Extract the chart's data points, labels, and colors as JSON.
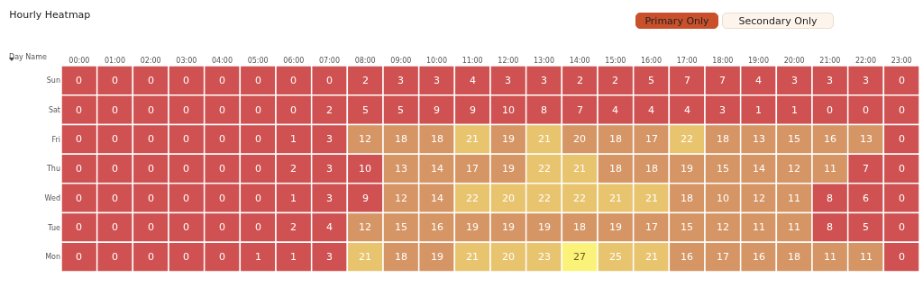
{
  "chart_data": {
    "type": "heatmap",
    "title": "Hourly Heatmap",
    "ylabel": "Day Name",
    "annotations": [
      "Primary Only",
      "Secondary Only"
    ],
    "categories": [
      "00:00",
      "01:00",
      "02:00",
      "03:00",
      "04:00",
      "05:00",
      "06:00",
      "07:00",
      "08:00",
      "09:00",
      "10:00",
      "11:00",
      "12:00",
      "13:00",
      "14:00",
      "15:00",
      "16:00",
      "17:00",
      "18:00",
      "19:00",
      "20:00",
      "21:00",
      "22:00",
      "23:00"
    ],
    "y_categories": [
      "Sun",
      "Sat",
      "Fri",
      "Thu",
      "Wed",
      "Tue",
      "Mon"
    ],
    "data_labels": true,
    "cells": [
      [
        0,
        0,
        0,
        0,
        0,
        0,
        0,
        0,
        2,
        3,
        3,
        4,
        3,
        3,
        2,
        2,
        5,
        7,
        7,
        4,
        3,
        3,
        3,
        0
      ],
      [
        0,
        0,
        0,
        0,
        0,
        0,
        0,
        2,
        5,
        5,
        9,
        9,
        10,
        8,
        7,
        4,
        4,
        4,
        3,
        1,
        1,
        0,
        0,
        0
      ],
      [
        0,
        0,
        0,
        0,
        0,
        0,
        1,
        3,
        12,
        18,
        18,
        21,
        19,
        21,
        20,
        18,
        17,
        22,
        18,
        13,
        15,
        16,
        13,
        0
      ],
      [
        0,
        0,
        0,
        0,
        0,
        0,
        2,
        3,
        10,
        13,
        14,
        17,
        19,
        22,
        21,
        18,
        18,
        19,
        15,
        14,
        12,
        11,
        7,
        0
      ],
      [
        0,
        0,
        0,
        0,
        0,
        0,
        1,
        3,
        9,
        12,
        14,
        22,
        20,
        22,
        22,
        21,
        21,
        18,
        10,
        12,
        11,
        8,
        6,
        0
      ],
      [
        0,
        0,
        0,
        0,
        0,
        0,
        2,
        4,
        12,
        15,
        16,
        19,
        19,
        19,
        18,
        19,
        17,
        15,
        12,
        11,
        11,
        8,
        5,
        0
      ],
      [
        0,
        0,
        0,
        0,
        0,
        1,
        1,
        3,
        21,
        18,
        19,
        21,
        20,
        23,
        27,
        25,
        21,
        16,
        17,
        16,
        18,
        11,
        11,
        0
      ]
    ],
    "colors": [
      [
        "#d05151",
        "#d05151",
        "#d05151",
        "#d05151",
        "#d05151",
        "#d05151",
        "#d05151",
        "#d05151",
        "#d05151",
        "#d05151",
        "#d05151",
        "#d05151",
        "#d05151",
        "#d05151",
        "#d05151",
        "#d05151",
        "#d05151",
        "#d05151",
        "#d05151",
        "#d05151",
        "#d05151",
        "#d05151",
        "#d05151",
        "#d05151"
      ],
      [
        "#d05151",
        "#d05151",
        "#d05151",
        "#d05151",
        "#d05151",
        "#d05151",
        "#d05151",
        "#d05151",
        "#d05151",
        "#d05151",
        "#d05151",
        "#d05151",
        "#d05151",
        "#d05151",
        "#d05151",
        "#d05151",
        "#d05151",
        "#d05151",
        "#d05151",
        "#d05151",
        "#d05151",
        "#d05151",
        "#d05151",
        "#d05151"
      ],
      [
        "#d05151",
        "#d05151",
        "#d05151",
        "#d05151",
        "#d05151",
        "#d05151",
        "#d05151",
        "#d05151",
        "#d59565",
        "#d59565",
        "#d59565",
        "#e8c46e",
        "#d59565",
        "#e8c46e",
        "#d59565",
        "#d59565",
        "#d59565",
        "#e8c46e",
        "#d59565",
        "#d59565",
        "#d59565",
        "#d59565",
        "#d59565",
        "#d05151"
      ],
      [
        "#d05151",
        "#d05151",
        "#d05151",
        "#d05151",
        "#d05151",
        "#d05151",
        "#d05151",
        "#d05151",
        "#d05151",
        "#d59565",
        "#d59565",
        "#d59565",
        "#d59565",
        "#e8c46e",
        "#e8c46e",
        "#d59565",
        "#d59565",
        "#d59565",
        "#d59565",
        "#d59565",
        "#d59565",
        "#d59565",
        "#d05151",
        "#d05151"
      ],
      [
        "#d05151",
        "#d05151",
        "#d05151",
        "#d05151",
        "#d05151",
        "#d05151",
        "#d05151",
        "#d05151",
        "#d05151",
        "#d59565",
        "#d59565",
        "#e8c46e",
        "#e8c46e",
        "#e8c46e",
        "#e8c46e",
        "#e8c46e",
        "#e8c46e",
        "#d59565",
        "#d59565",
        "#d59565",
        "#d59565",
        "#d05151",
        "#d05151",
        "#d05151"
      ],
      [
        "#d05151",
        "#d05151",
        "#d05151",
        "#d05151",
        "#d05151",
        "#d05151",
        "#d05151",
        "#d05151",
        "#d59565",
        "#d59565",
        "#d59565",
        "#d59565",
        "#d59565",
        "#d59565",
        "#d59565",
        "#d59565",
        "#d59565",
        "#d59565",
        "#d59565",
        "#d59565",
        "#d59565",
        "#d05151",
        "#d05151",
        "#d05151"
      ],
      [
        "#d05151",
        "#d05151",
        "#d05151",
        "#d05151",
        "#d05151",
        "#d05151",
        "#d05151",
        "#d05151",
        "#e8c46e",
        "#d59565",
        "#d59565",
        "#e8c46e",
        "#e8c46e",
        "#e8c46e",
        "#fbf279",
        "#e8c46e",
        "#e8c46e",
        "#d59565",
        "#d59565",
        "#d59565",
        "#d59565",
        "#d59565",
        "#d59565",
        "#d05151"
      ]
    ]
  }
}
